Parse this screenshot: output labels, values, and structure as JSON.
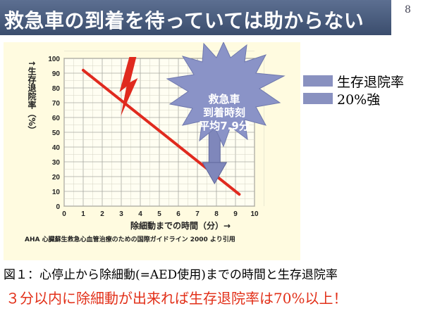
{
  "slide": {
    "title": "救急車の到着を待っていては助からない",
    "page_number": "8",
    "callout": {
      "line1": "救急車",
      "line2": "到着時刻",
      "line3": "平均7.9分"
    },
    "legend": {
      "line1": "生存退院率",
      "line2": "20%強"
    },
    "caption": "図１：心停止から除細動(=AED使用)までの時間と生存退院率",
    "conclusion": "３分以内に除細動が出来れば生存退院率は70%以上！",
    "colors": {
      "title_bg": "#4a5c7e",
      "line": "#e02a1e",
      "arrow": "#7f87bb",
      "conclusion": "#e23019"
    }
  },
  "chart_data": {
    "type": "line",
    "ylabel": "↑生存退院率（%）",
    "xlabel": "除細動までの時間（分）→",
    "source": "AHA 心臓蘇生救急心血管治療のための国際ガイドライン 2000 より引用",
    "x_ticks": [
      "0",
      "1",
      "2",
      "3",
      "4",
      "5",
      "6",
      "7",
      "8",
      "9",
      "10"
    ],
    "y_ticks": [
      "0",
      "10",
      "20",
      "30",
      "40",
      "50",
      "60",
      "70",
      "80",
      "90",
      "100"
    ],
    "xlim": [
      0,
      10
    ],
    "ylim": [
      0,
      100
    ],
    "grid": true,
    "series": [
      {
        "x": [
          1,
          9.2
        ],
        "y": [
          92,
          8
        ]
      }
    ],
    "marker_x": 7.9
  }
}
